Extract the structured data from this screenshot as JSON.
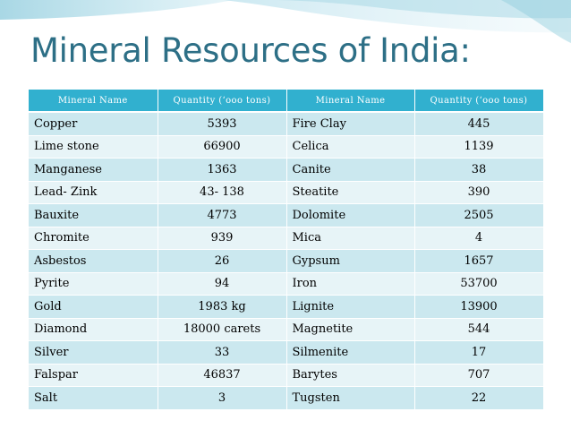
{
  "slide": {
    "title": "Mineral Resources of India:"
  },
  "table": {
    "headers": [
      "Mineral Name",
      "Quantity (‘ooo tons)",
      "Mineral Name",
      "Quantity (‘ooo tons)"
    ],
    "rows": [
      [
        "Copper",
        "5393",
        "Fire Clay",
        "445"
      ],
      [
        "Lime stone",
        "66900",
        "Celica",
        "1139"
      ],
      [
        "Manganese",
        "1363",
        "Canite",
        "38"
      ],
      [
        "Lead- Zink",
        "43- 138",
        "Steatite",
        "390"
      ],
      [
        "Bauxite",
        "4773",
        "Dolomite",
        "2505"
      ],
      [
        "Chromite",
        "939",
        "Mica",
        "4"
      ],
      [
        "Asbestos",
        "26",
        "Gypsum",
        "1657"
      ],
      [
        "Pyrite",
        "94",
        "Iron",
        "53700"
      ],
      [
        "Gold",
        "1983 kg",
        "Lignite",
        "13900"
      ],
      [
        "Diamond",
        "18000 carets",
        "Magnetite",
        "544"
      ],
      [
        "Silver",
        "33",
        "Silmenite",
        "17"
      ],
      [
        "Falspar",
        "46837",
        "Barytes",
        "707"
      ],
      [
        "Salt",
        "3",
        "Tugsten",
        "22"
      ]
    ]
  },
  "colors": {
    "title": "#2d6f86",
    "header_bg": "#31b0cf",
    "row_dark": "#cbe8ef",
    "row_light": "#e7f4f7"
  }
}
